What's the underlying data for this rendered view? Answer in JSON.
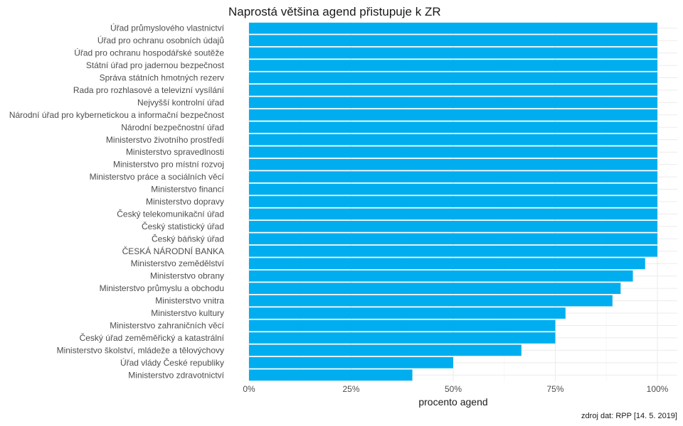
{
  "chart_data": {
    "type": "bar",
    "orientation": "horizontal",
    "title": "Naprostá většina agend přistupuje k ZR",
    "xlabel": "procento agend",
    "ylabel": "",
    "xlim": [
      0,
      100
    ],
    "x_ticks": [
      0,
      25,
      50,
      75,
      100
    ],
    "x_tick_labels": [
      "0%",
      "25%",
      "50%",
      "75%",
      "100%"
    ],
    "caption": "zdroj dat: RPP [14. 5. 2019]",
    "grid": true,
    "bar_color": "#00AEEF",
    "categories": [
      "Úřad průmyslového vlastnictví",
      "Úřad pro ochranu osobních údajů",
      "Úřad pro ochranu hospodářské soutěže",
      "Státní úřad pro jadernou bezpečnost",
      "Správa státních hmotných rezerv",
      "Rada pro rozhlasové a televizní vysílání",
      "Nejvyšší kontrolní úřad",
      "Národní úřad pro kybernetickou a informační bezpečnost",
      "Národní bezpečnostní úřad",
      "Ministerstvo životního prostředí",
      "Ministerstvo spravedlnosti",
      "Ministerstvo pro místní rozvoj",
      "Ministerstvo práce a sociálních věcí",
      "Ministerstvo financí",
      "Ministerstvo dopravy",
      "Český telekomunikační úřad",
      "Český statistický úřad",
      "Český báňský úřad",
      "ČESKÁ NÁRODNÍ BANKA",
      "Ministerstvo zemědělství",
      "Ministerstvo obrany",
      "Ministerstvo průmyslu a obchodu",
      "Ministerstvo vnitra",
      "Ministerstvo kultury",
      "Ministerstvo zahraničních věcí",
      "Český úřad zeměměřický a katastrální",
      "Ministerstvo školství, mládeže a tělovýchovy",
      "Úřad vlády České republiky",
      "Ministerstvo zdravotnictví"
    ],
    "values": [
      100,
      100,
      100,
      100,
      100,
      100,
      100,
      100,
      100,
      100,
      100,
      100,
      100,
      100,
      100,
      100,
      100,
      100,
      100,
      97,
      94,
      91,
      89,
      77.5,
      75,
      75,
      66.7,
      50,
      40
    ]
  }
}
